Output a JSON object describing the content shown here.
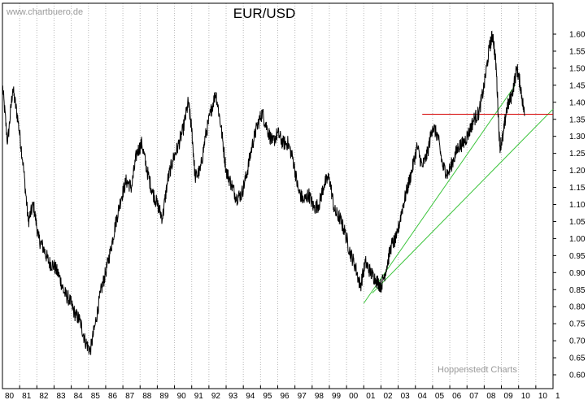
{
  "watermark_top": "www.chartbuero.de",
  "watermark_bottom": "Hoppenstedt Charts",
  "chart_data": {
    "type": "line",
    "title": "EUR/USD",
    "x_tick_labels": [
      "80",
      "81",
      "82",
      "83",
      "84",
      "85",
      "86",
      "87",
      "88",
      "89",
      "90",
      "91",
      "92",
      "93",
      "94",
      "95",
      "96",
      "97",
      "98",
      "99",
      "00",
      "01",
      "02",
      "03",
      "04",
      "05",
      "06",
      "07",
      "08",
      "09",
      "10",
      "10",
      "1"
    ],
    "y_tick_labels": [
      "1.60",
      "1.55",
      "1.50",
      "1.45",
      "1.40",
      "1.35",
      "1.30",
      "1.25",
      "1.20",
      "1.15",
      "1.10",
      "1.05",
      "1.00",
      "0.95",
      "0.90",
      "0.85",
      "0.80",
      "0.75",
      "0.70",
      "0.65",
      "0.60"
    ],
    "ylim": [
      0.58,
      1.64
    ],
    "xlim": [
      1980.0,
      2012.0
    ],
    "grid": "vertical dotted",
    "series": [
      {
        "values_x": [
          1980.0,
          1980.3,
          1980.6,
          1980.9,
          1981.2,
          1981.5,
          1981.8,
          1982.1,
          1982.4,
          1982.7,
          1983.0,
          1983.3,
          1983.6,
          1983.9,
          1984.2,
          1984.5,
          1984.8,
          1985.1,
          1985.4,
          1985.7,
          1986.0,
          1986.3,
          1986.6,
          1986.9,
          1987.2,
          1987.5,
          1987.8,
          1988.1,
          1988.4,
          1988.7,
          1989.0,
          1989.3,
          1989.6,
          1989.9,
          1990.2,
          1990.5,
          1990.8,
          1991.0,
          1991.2,
          1991.5,
          1991.8,
          1992.1,
          1992.4,
          1992.7,
          1993.0,
          1993.3,
          1993.6,
          1993.9,
          1994.2,
          1994.5,
          1994.8,
          1995.1,
          1995.4,
          1995.7,
          1996.0,
          1996.3,
          1996.6,
          1996.9,
          1997.2,
          1997.5,
          1997.8,
          1998.1,
          1998.4,
          1998.7,
          1999.0,
          1999.3,
          1999.6,
          1999.9,
          2000.2,
          2000.5,
          2000.8,
          2001.1,
          2001.4,
          2001.7,
          2002.0,
          2002.3,
          2002.6,
          2002.9,
          2003.2,
          2003.5,
          2003.8,
          2004.1,
          2004.4,
          2004.7,
          2005.0,
          2005.3,
          2005.6,
          2005.9,
          2006.2,
          2006.5,
          2006.8,
          2007.1,
          2007.4,
          2007.7,
          2008.0,
          2008.3,
          2008.5,
          2008.7,
          2008.9,
          2009.1,
          2009.3,
          2009.6,
          2009.9,
          2010.1,
          2010.35
        ],
        "values_y": [
          1.45,
          1.28,
          1.44,
          1.35,
          1.22,
          1.05,
          1.1,
          1.0,
          0.97,
          0.93,
          0.92,
          0.89,
          0.84,
          0.82,
          0.78,
          0.76,
          0.7,
          0.67,
          0.75,
          0.84,
          0.9,
          0.97,
          1.05,
          1.12,
          1.17,
          1.15,
          1.25,
          1.28,
          1.2,
          1.14,
          1.1,
          1.06,
          1.17,
          1.23,
          1.27,
          1.32,
          1.4,
          1.32,
          1.18,
          1.2,
          1.3,
          1.37,
          1.43,
          1.33,
          1.2,
          1.16,
          1.12,
          1.13,
          1.19,
          1.27,
          1.33,
          1.37,
          1.32,
          1.28,
          1.31,
          1.28,
          1.28,
          1.23,
          1.14,
          1.11,
          1.13,
          1.09,
          1.1,
          1.16,
          1.18,
          1.08,
          1.06,
          1.02,
          0.96,
          0.92,
          0.86,
          0.93,
          0.9,
          0.88,
          0.86,
          0.91,
          0.98,
          1.0,
          1.08,
          1.14,
          1.2,
          1.27,
          1.21,
          1.25,
          1.33,
          1.3,
          1.21,
          1.19,
          1.23,
          1.27,
          1.28,
          1.31,
          1.35,
          1.37,
          1.45,
          1.56,
          1.6,
          1.5,
          1.27,
          1.3,
          1.38,
          1.42,
          1.5,
          1.45,
          1.36
        ]
      }
    ],
    "horizontal_line": {
      "y": 1.365,
      "x_start": 2004.4,
      "x_end": 2012.0,
      "color": "#d40000"
    },
    "trendlines": [
      {
        "x1": 2001.0,
        "y1": 0.81,
        "x2": 2009.8,
        "y2": 1.45,
        "color": "#3cc43c"
      },
      {
        "x1": 2001.5,
        "y1": 0.84,
        "x2": 2012.0,
        "y2": 1.38,
        "color": "#3cc43c"
      }
    ],
    "line_color": "#000000"
  }
}
